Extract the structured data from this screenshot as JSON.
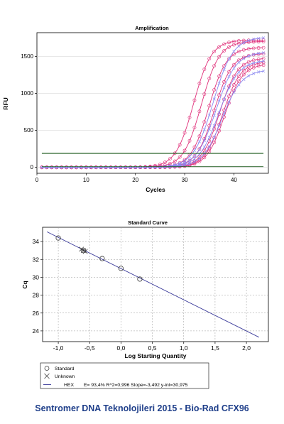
{
  "caption": "Sentromer DNA Teknolojileri 2015 - Bio-Rad CFX96",
  "colors": {
    "standard": "#e0307a",
    "unknown": "#8a88f0",
    "threshold": "#1d5a1d",
    "fit": "#3a3a9a",
    "axis": "#000000"
  },
  "chart_data": [
    {
      "type": "line",
      "title": "Amplification",
      "xlabel": "Cycles",
      "ylabel": "RFU",
      "xlim": [
        0,
        47
      ],
      "ylim": [
        -80,
        1820
      ],
      "xticks": [
        0,
        10,
        20,
        30,
        40
      ],
      "yticks": [
        0,
        500,
        1000,
        1500
      ],
      "threshold": 190,
      "cycles": [
        1,
        46
      ],
      "series": [
        {
          "group": "standard",
          "values": {
            "ct": 29.0,
            "plateau": 1720,
            "slope": 0.55
          }
        },
        {
          "group": "standard",
          "values": {
            "ct": 30.6,
            "plateau": 1700,
            "slope": 0.55
          }
        },
        {
          "group": "standard",
          "values": {
            "ct": 32.1,
            "plateau": 1620,
            "slope": 0.55
          }
        },
        {
          "group": "standard",
          "values": {
            "ct": 33.2,
            "plateau": 1540,
            "slope": 0.55
          }
        },
        {
          "group": "standard",
          "values": {
            "ct": 34.3,
            "plateau": 1480,
            "slope": 0.55
          }
        },
        {
          "group": "standard",
          "values": {
            "ct": 34.9,
            "plateau": 1430,
            "slope": 0.55
          }
        },
        {
          "group": "standard",
          "values": {
            "ct": 35.3,
            "plateau": 1400,
            "slope": 0.55
          }
        },
        {
          "group": "unknown",
          "values": {
            "ct": 33.0,
            "plateau": 1760,
            "slope": 0.5
          }
        },
        {
          "group": "unknown",
          "values": {
            "ct": 33.6,
            "plateau": 1560,
            "slope": 0.5
          }
        },
        {
          "group": "unknown",
          "values": {
            "ct": 34.1,
            "plateau": 1450,
            "slope": 0.5
          }
        },
        {
          "group": "unknown",
          "values": {
            "ct": 34.8,
            "plateau": 1320,
            "slope": 0.5
          }
        }
      ]
    },
    {
      "type": "scatter",
      "title": "Standard Curve",
      "xlabel": "Log Starting Quantity",
      "ylabel": "Cq",
      "xlim": [
        -1.25,
        2.35
      ],
      "ylim": [
        22.8,
        35.6
      ],
      "xticks": [
        -1.0,
        -0.5,
        0.0,
        0.5,
        1.0,
        1.5,
        2.0
      ],
      "xtick_labels": [
        "-1,0",
        "-0,5",
        "0,0",
        "0,5",
        "1,0",
        "1,5",
        "2,0"
      ],
      "yticks": [
        24,
        26,
        28,
        30,
        32,
        34
      ],
      "standards": [
        {
          "x": -1.0,
          "y": 34.4
        },
        {
          "x": -0.6,
          "y": 33.0
        },
        {
          "x": -0.3,
          "y": 32.1
        },
        {
          "x": 0.0,
          "y": 31.0
        },
        {
          "x": 0.3,
          "y": 29.8
        }
      ],
      "unknowns": [
        {
          "x": -0.63,
          "y": 33.15
        },
        {
          "x": -0.6,
          "y": 33.0
        },
        {
          "x": -0.57,
          "y": 32.9
        }
      ],
      "fit": {
        "slope": -3.492,
        "intercept": 30.975,
        "x_range": [
          -1.18,
          2.2
        ]
      },
      "legend": {
        "standard_label": "Standard",
        "unknown_label": "Unknown",
        "fit_label": "HEX",
        "stats": "E= 93,4% R^2=0,996 Slope=-3,492 y-int=30,975"
      }
    }
  ]
}
